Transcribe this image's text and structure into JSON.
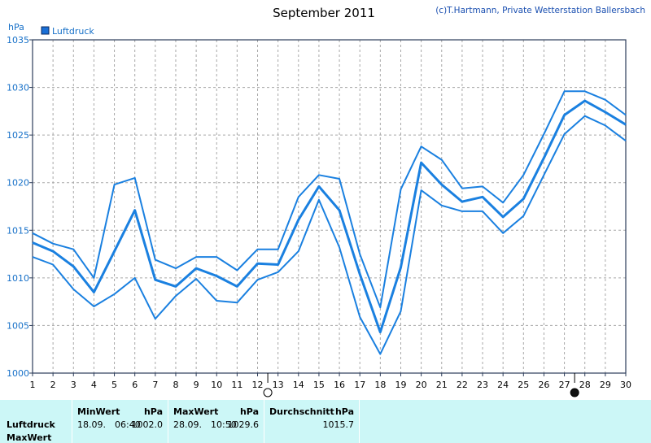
{
  "header": {
    "title": "September 2011",
    "copyright": "(c)T.Hartmann, Private Wetterstation Ballersbach"
  },
  "legend": {
    "label": "Luftdruck",
    "swatch_color": "#1a6fd6"
  },
  "colors": {
    "series": "#1a80e0",
    "axis": "#2c3c5a",
    "grid": "#a8a8a8",
    "label": "#1670c8",
    "panel_bg": "#ccf7f7"
  },
  "chart_data": {
    "type": "line",
    "title": "September 2011",
    "xlabel": "",
    "ylabel": "hPa",
    "x": [
      1,
      2,
      3,
      4,
      5,
      6,
      7,
      8,
      9,
      10,
      11,
      12,
      13,
      14,
      15,
      16,
      17,
      18,
      19,
      20,
      21,
      22,
      23,
      24,
      25,
      26,
      27,
      28,
      29,
      30
    ],
    "xlim": [
      1,
      30
    ],
    "ylim": [
      1000,
      1035
    ],
    "yticks": [
      1000,
      1005,
      1010,
      1015,
      1020,
      1025,
      1030,
      1035
    ],
    "grid": true,
    "legend_position": "top-left",
    "series": [
      {
        "name": "Luftdruck",
        "role": "mean",
        "values": [
          1013.7,
          1012.8,
          1011.2,
          1008.5,
          1012.8,
          1017.1,
          1009.8,
          1009.1,
          1011.0,
          1010.2,
          1009.1,
          1011.5,
          1011.4,
          1016.1,
          1019.6,
          1017.1,
          1010.4,
          1004.3,
          1011.1,
          1022.1,
          1019.8,
          1018.0,
          1018.5,
          1016.4,
          1018.3,
          1022.6,
          1027.1,
          1028.6,
          1027.4,
          1026.1
        ]
      },
      {
        "role": "max",
        "values": [
          1014.7,
          1013.6,
          1013.0,
          1010.0,
          1019.8,
          1020.5,
          1011.9,
          1011.0,
          1012.2,
          1012.2,
          1010.8,
          1013.0,
          1013.0,
          1018.5,
          1020.8,
          1020.4,
          1012.5,
          1006.9,
          1019.3,
          1023.8,
          1022.4,
          1019.4,
          1019.6,
          1017.9,
          1020.8,
          1025.1,
          1029.6,
          1029.6,
          1028.7,
          1027.1
        ]
      },
      {
        "role": "min",
        "values": [
          1012.2,
          1011.4,
          1008.8,
          1007.0,
          1008.3,
          1010.0,
          1005.7,
          1008.1,
          1009.9,
          1007.6,
          1007.4,
          1009.8,
          1010.6,
          1012.8,
          1018.2,
          1013.2,
          1005.9,
          1002.0,
          1006.5,
          1019.2,
          1017.6,
          1017.0,
          1017.0,
          1014.7,
          1016.5,
          1020.8,
          1025.1,
          1027.0,
          1026.0,
          1024.4
        ]
      }
    ],
    "moon_markers": [
      {
        "day": 12.5,
        "phase": "full-moon"
      },
      {
        "day": 27.5,
        "phase": "new-moon"
      }
    ]
  },
  "stats": {
    "rows": [
      "Luftdruck",
      "MaxWert"
    ],
    "columns": [
      {
        "header": "MinWert",
        "unit": "hPa",
        "date": "18.09.",
        "time": "06:40",
        "value": "1002.0"
      },
      {
        "header": "MaxWert",
        "unit": "hPa",
        "date": "28.09.",
        "time": "10:50",
        "value": "1029.6"
      },
      {
        "header": "Durchschnitt",
        "unit": "hPa",
        "value": "1015.7"
      }
    ]
  }
}
